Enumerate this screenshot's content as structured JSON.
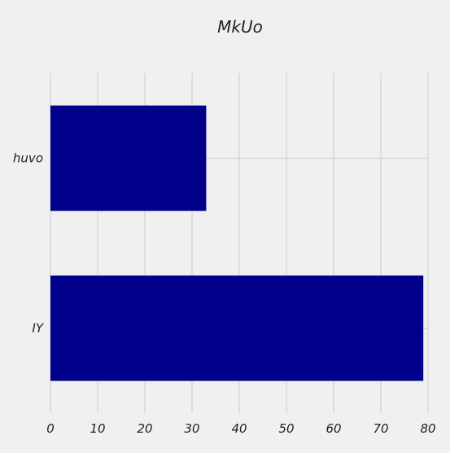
{
  "chart_data": {
    "type": "bar",
    "orientation": "horizontal",
    "title": "MkUo",
    "xlabel": "",
    "ylabel": "",
    "categories": [
      "huvo",
      "IY"
    ],
    "values": [
      33,
      79
    ],
    "xlim": [
      0,
      80
    ],
    "xticks": [
      0,
      10,
      20,
      30,
      40,
      50,
      60,
      70,
      80
    ],
    "grid": true,
    "legend": "none",
    "colors": {
      "bar": "#00008b",
      "background": "#f0f0f0",
      "grid": "#cbcbcb",
      "text": "#222222"
    }
  }
}
